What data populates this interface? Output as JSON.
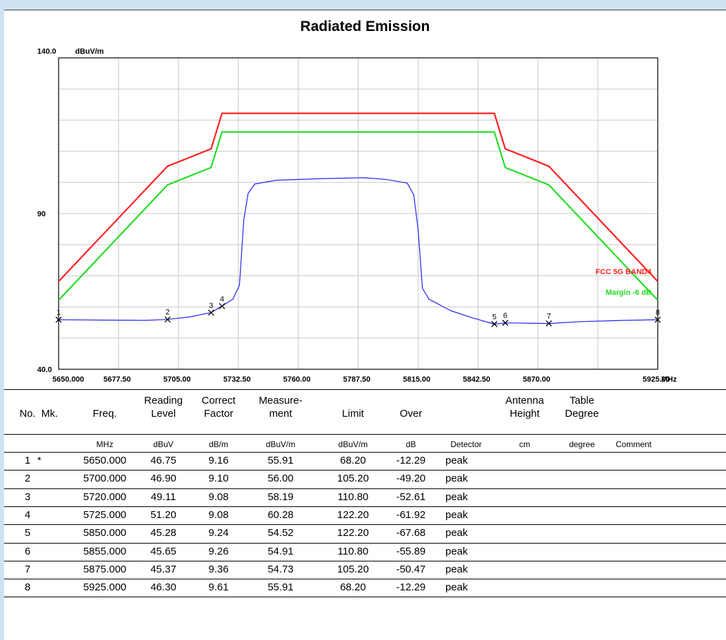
{
  "title": "Radiated Emission",
  "chart_data": {
    "type": "line",
    "y_unit": "dBuV/m",
    "x_unit": "MHz",
    "y_tick_labels": [
      "140.0",
      "90",
      "40.0"
    ],
    "x_tick_labels": [
      "5650.000",
      "5677.50",
      "5705.00",
      "5732.50",
      "5760.00",
      "5787.50",
      "5815.00",
      "5842.50",
      "5870.00",
      "5925.00"
    ],
    "xlim": [
      5650,
      5925
    ],
    "ylim": [
      40,
      140
    ],
    "grid": true,
    "legend_placement": "right",
    "series": [
      {
        "name": "FCC 5G BAND4",
        "color": "#ff2020",
        "points": [
          [
            5650,
            68.2
          ],
          [
            5700,
            105.2
          ],
          [
            5720,
            110.8
          ],
          [
            5725,
            122.2
          ],
          [
            5850,
            122.2
          ],
          [
            5855,
            110.8
          ],
          [
            5875,
            105.2
          ],
          [
            5925,
            68.2
          ]
        ]
      },
      {
        "name": "Margin -6 dB",
        "color": "#22dd22",
        "points": [
          [
            5650,
            62.2
          ],
          [
            5700,
            99.2
          ],
          [
            5720,
            104.8
          ],
          [
            5725,
            116.2
          ],
          [
            5850,
            116.2
          ],
          [
            5855,
            104.8
          ],
          [
            5875,
            99.2
          ],
          [
            5925,
            62.2
          ]
        ]
      },
      {
        "color": "#2222ee",
        "points": [
          [
            5650,
            55.9
          ],
          [
            5670,
            55.8
          ],
          [
            5690,
            55.7
          ],
          [
            5700,
            56.0
          ],
          [
            5710,
            56.8
          ],
          [
            5720,
            58.2
          ],
          [
            5725,
            60.3
          ],
          [
            5730,
            62.5
          ],
          [
            5733,
            67
          ],
          [
            5735,
            88
          ],
          [
            5737,
            96.5
          ],
          [
            5740,
            99.5
          ],
          [
            5750,
            100.7
          ],
          [
            5770,
            101.2
          ],
          [
            5790,
            101.5
          ],
          [
            5800,
            101.0
          ],
          [
            5810,
            99.8
          ],
          [
            5813,
            96
          ],
          [
            5815,
            85
          ],
          [
            5817,
            66
          ],
          [
            5820,
            62.5
          ],
          [
            5830,
            58.8
          ],
          [
            5840,
            56.5
          ],
          [
            5850,
            54.5
          ],
          [
            5855,
            54.9
          ],
          [
            5865,
            54.8
          ],
          [
            5875,
            54.7
          ],
          [
            5890,
            55.3
          ],
          [
            5910,
            55.7
          ],
          [
            5925,
            55.9
          ]
        ]
      }
    ],
    "markers": [
      {
        "label": "1",
        "x": 5650,
        "y": 55.91
      },
      {
        "label": "2",
        "x": 5700,
        "y": 56.0
      },
      {
        "label": "3",
        "x": 5720,
        "y": 58.19
      },
      {
        "label": "4",
        "x": 5725,
        "y": 60.28
      },
      {
        "label": "5",
        "x": 5850,
        "y": 54.52
      },
      {
        "label": "6",
        "x": 5855,
        "y": 54.91
      },
      {
        "label": "7",
        "x": 5875,
        "y": 54.73
      },
      {
        "label": "8",
        "x": 5925,
        "y": 55.91
      }
    ]
  },
  "table": {
    "headers": [
      "No.",
      "Mk.",
      "Freq.",
      "Reading Level",
      "Correct Factor",
      "Measure- ment",
      "Limit",
      "Over",
      "",
      "Antenna Height",
      "Table Degree",
      ""
    ],
    "header_lines": [
      [
        "No."
      ],
      [
        "Mk."
      ],
      [
        "Freq."
      ],
      [
        "Reading",
        "Level"
      ],
      [
        "Correct",
        "Factor"
      ],
      [
        "Measure-",
        "ment"
      ],
      [
        "Limit"
      ],
      [
        "Over"
      ],
      [
        ""
      ],
      [
        "Antenna",
        "Height"
      ],
      [
        "Table",
        "Degree"
      ],
      [
        ""
      ]
    ],
    "units": [
      "",
      "",
      "MHz",
      "dBuV",
      "dB/m",
      "dBuV/m",
      "dBuV/m",
      "dB",
      "Detector",
      "cm",
      "degree",
      "Comment"
    ],
    "rows": [
      [
        "1",
        "*",
        "5650.000",
        "46.75",
        "9.16",
        "55.91",
        "68.20",
        "-12.29",
        "peak"
      ],
      [
        "2",
        "",
        "5700.000",
        "46.90",
        "9.10",
        "56.00",
        "105.20",
        "-49.20",
        "peak"
      ],
      [
        "3",
        "",
        "5720.000",
        "49.11",
        "9.08",
        "58.19",
        "110.80",
        "-52.61",
        "peak"
      ],
      [
        "4",
        "",
        "5725.000",
        "51.20",
        "9.08",
        "60.28",
        "122.20",
        "-61.92",
        "peak"
      ],
      [
        "5",
        "",
        "5850.000",
        "45.28",
        "9.24",
        "54.52",
        "122.20",
        "-67.68",
        "peak"
      ],
      [
        "6",
        "",
        "5855.000",
        "45.65",
        "9.26",
        "54.91",
        "110.80",
        "-55.89",
        "peak"
      ],
      [
        "7",
        "",
        "5875.000",
        "45.37",
        "9.36",
        "54.73",
        "105.20",
        "-50.47",
        "peak"
      ],
      [
        "8",
        "",
        "5925.000",
        "46.30",
        "9.61",
        "55.91",
        "68.20",
        "-12.29",
        "peak"
      ]
    ]
  }
}
